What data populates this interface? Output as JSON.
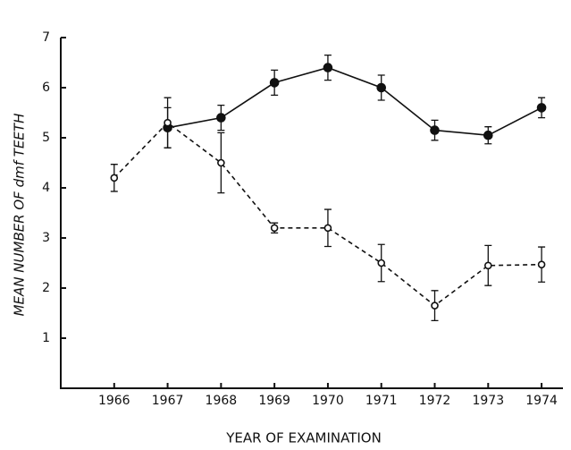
{
  "chart_data": {
    "type": "line",
    "xlabel": "YEAR OF EXAMINATION",
    "ylabel": "MEAN NUMBER OF dmf TEETH",
    "x": [
      1966,
      1967,
      1968,
      1969,
      1970,
      1971,
      1972,
      1973,
      1974
    ],
    "series": [
      {
        "color": "#111111",
        "marker": "filled",
        "linestyle": "solid",
        "values": [
          null,
          5.2,
          5.4,
          6.1,
          6.4,
          6.0,
          5.15,
          5.05,
          5.6
        ],
        "errors": [
          null,
          0.4,
          0.25,
          0.25,
          0.25,
          0.25,
          0.2,
          0.17,
          0.2
        ]
      },
      {
        "color": "#111111",
        "marker": "open",
        "linestyle": "dashed",
        "values": [
          4.2,
          5.3,
          4.5,
          3.2,
          3.2,
          2.5,
          1.65,
          2.45,
          2.47
        ],
        "errors": [
          0.27,
          0.5,
          0.6,
          0.1,
          0.37,
          0.37,
          0.3,
          0.4,
          0.35
        ]
      }
    ],
    "xlim": [
      1965,
      1974.4
    ],
    "xticks": [
      1966,
      1967,
      1968,
      1969,
      1970,
      1971,
      1972,
      1973,
      1974
    ],
    "ylim": [
      0,
      7
    ],
    "yticks": [
      1,
      2,
      3,
      4,
      5,
      6,
      7
    ]
  }
}
